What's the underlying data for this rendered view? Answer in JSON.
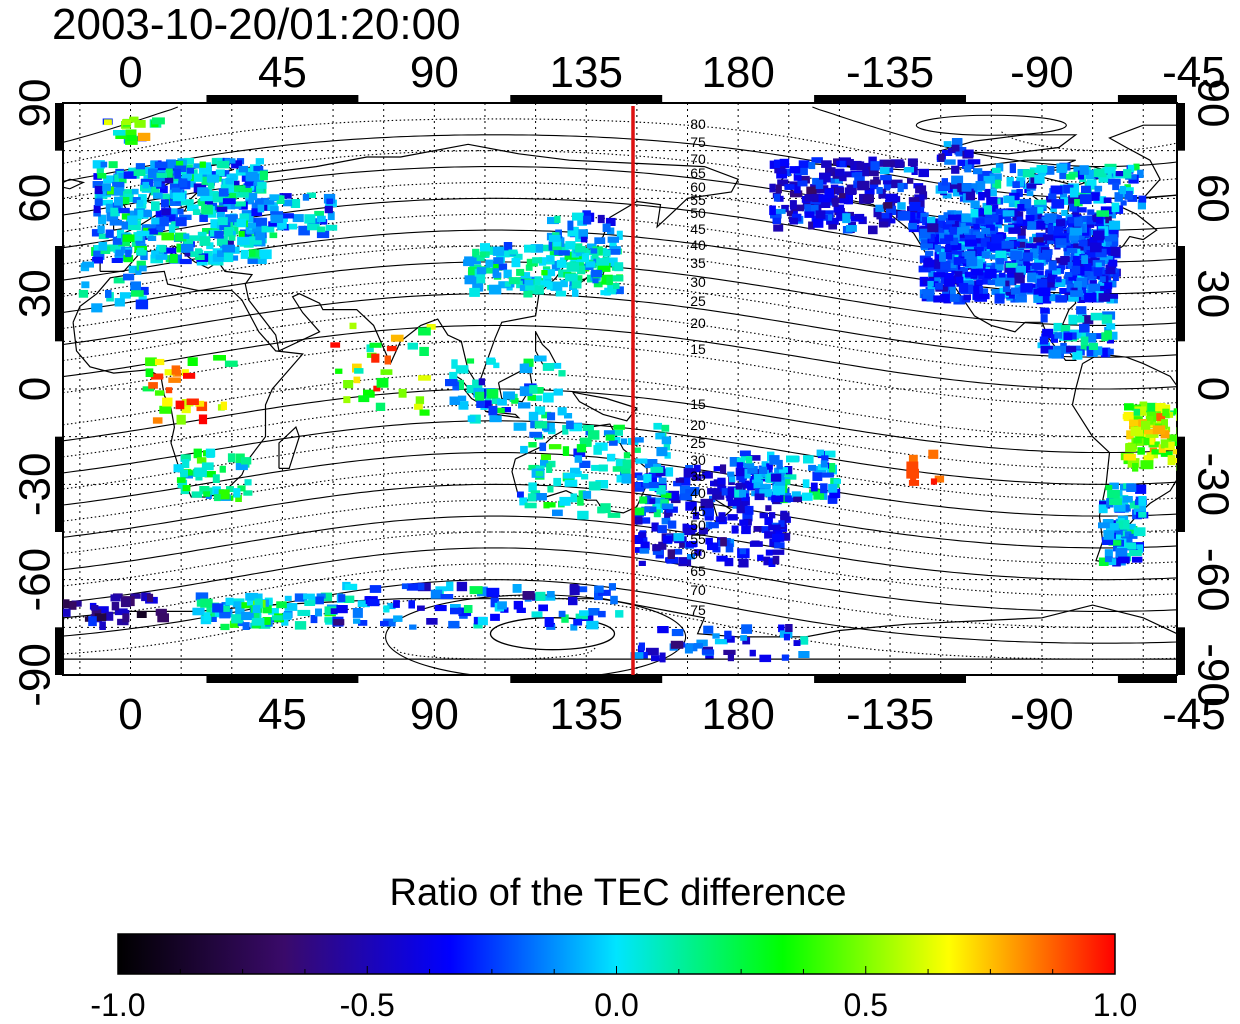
{
  "title": "2003-10-20/01:20:00",
  "map": {
    "lon_ticks_top": [
      "0",
      "45",
      "90",
      "135",
      "180",
      "-135",
      "-90",
      "-45"
    ],
    "lon_ticks_bottom": [
      "0",
      "45",
      "90",
      "135",
      "180",
      "-135",
      "-90",
      "-45"
    ],
    "lat_ticks_left": [
      "90",
      "60",
      "30",
      "0",
      "-30",
      "-60",
      "-90"
    ],
    "lat_ticks_right": [
      "90",
      "60",
      "30",
      "0",
      "-30",
      "-60",
      "-90"
    ],
    "contour_labels_north": [
      "80",
      "75",
      "70",
      "65",
      "60",
      "55",
      "50",
      "45",
      "40",
      "35",
      "30",
      "25",
      "20",
      "15"
    ],
    "contour_labels_south": [
      "15",
      "20",
      "25",
      "30",
      "35",
      "40",
      "45",
      "50",
      "55",
      "60",
      "65",
      "70",
      "75"
    ],
    "marker_line_color": "#dd1111"
  },
  "colorbar": {
    "title": "Ratio of the TEC difference",
    "tick_labels": [
      "-1.0",
      "-0.5",
      "0.0",
      "0.5",
      "1.0"
    ],
    "min": -1.0,
    "max": 1.0,
    "colors": [
      "#000000",
      "#3a0a6a",
      "#0000ff",
      "#00e5ff",
      "#00ff00",
      "#ffff00",
      "#ff0000"
    ]
  }
}
